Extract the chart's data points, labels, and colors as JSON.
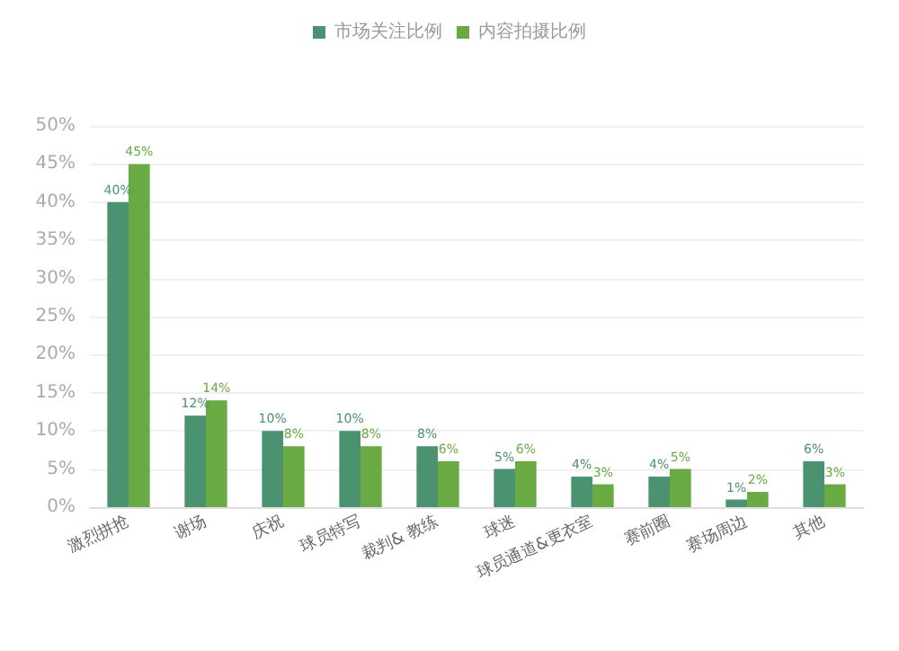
{
  "chart_data": {
    "type": "bar",
    "categories": [
      "激烈拼抢",
      "谢场",
      "庆祝",
      "球员特写",
      "裁判& 教练",
      "球迷",
      "球员通道&更衣室",
      "赛前圈",
      "赛场周边",
      "其他"
    ],
    "series": [
      {
        "name": "市场关注比例",
        "color": "#4a9270",
        "values": [
          40,
          12,
          10,
          10,
          8,
          5,
          4,
          4,
          1,
          6
        ],
        "value_labels": [
          "40%",
          "12%",
          "10%",
          "10%",
          "8%",
          "5%",
          "4%",
          "4%",
          "1%",
          "6%"
        ]
      },
      {
        "name": "内容拍摄比例",
        "color": "#6aaa42",
        "values": [
          45,
          14,
          8,
          8,
          6,
          6,
          3,
          5,
          2,
          3
        ],
        "value_labels": [
          "45%",
          "14%",
          "8%",
          "8%",
          "6%",
          "6%",
          "3%",
          "5%",
          "2%",
          "3%"
        ]
      }
    ],
    "ylim": [
      0,
      50
    ],
    "yticks": [
      {
        "value": 0,
        "label": "0%"
      },
      {
        "value": 5,
        "label": "5%"
      },
      {
        "value": 10,
        "label": "10%"
      },
      {
        "value": 15,
        "label": "15%"
      },
      {
        "value": 20,
        "label": "20%"
      },
      {
        "value": 25,
        "label": "25%"
      },
      {
        "value": 30,
        "label": "30%"
      },
      {
        "value": 35,
        "label": "35%"
      },
      {
        "value": 40,
        "label": "40%"
      },
      {
        "value": 45,
        "label": "45%"
      },
      {
        "value": 50,
        "label": "50%"
      }
    ],
    "grid": "y",
    "legend": "top"
  }
}
